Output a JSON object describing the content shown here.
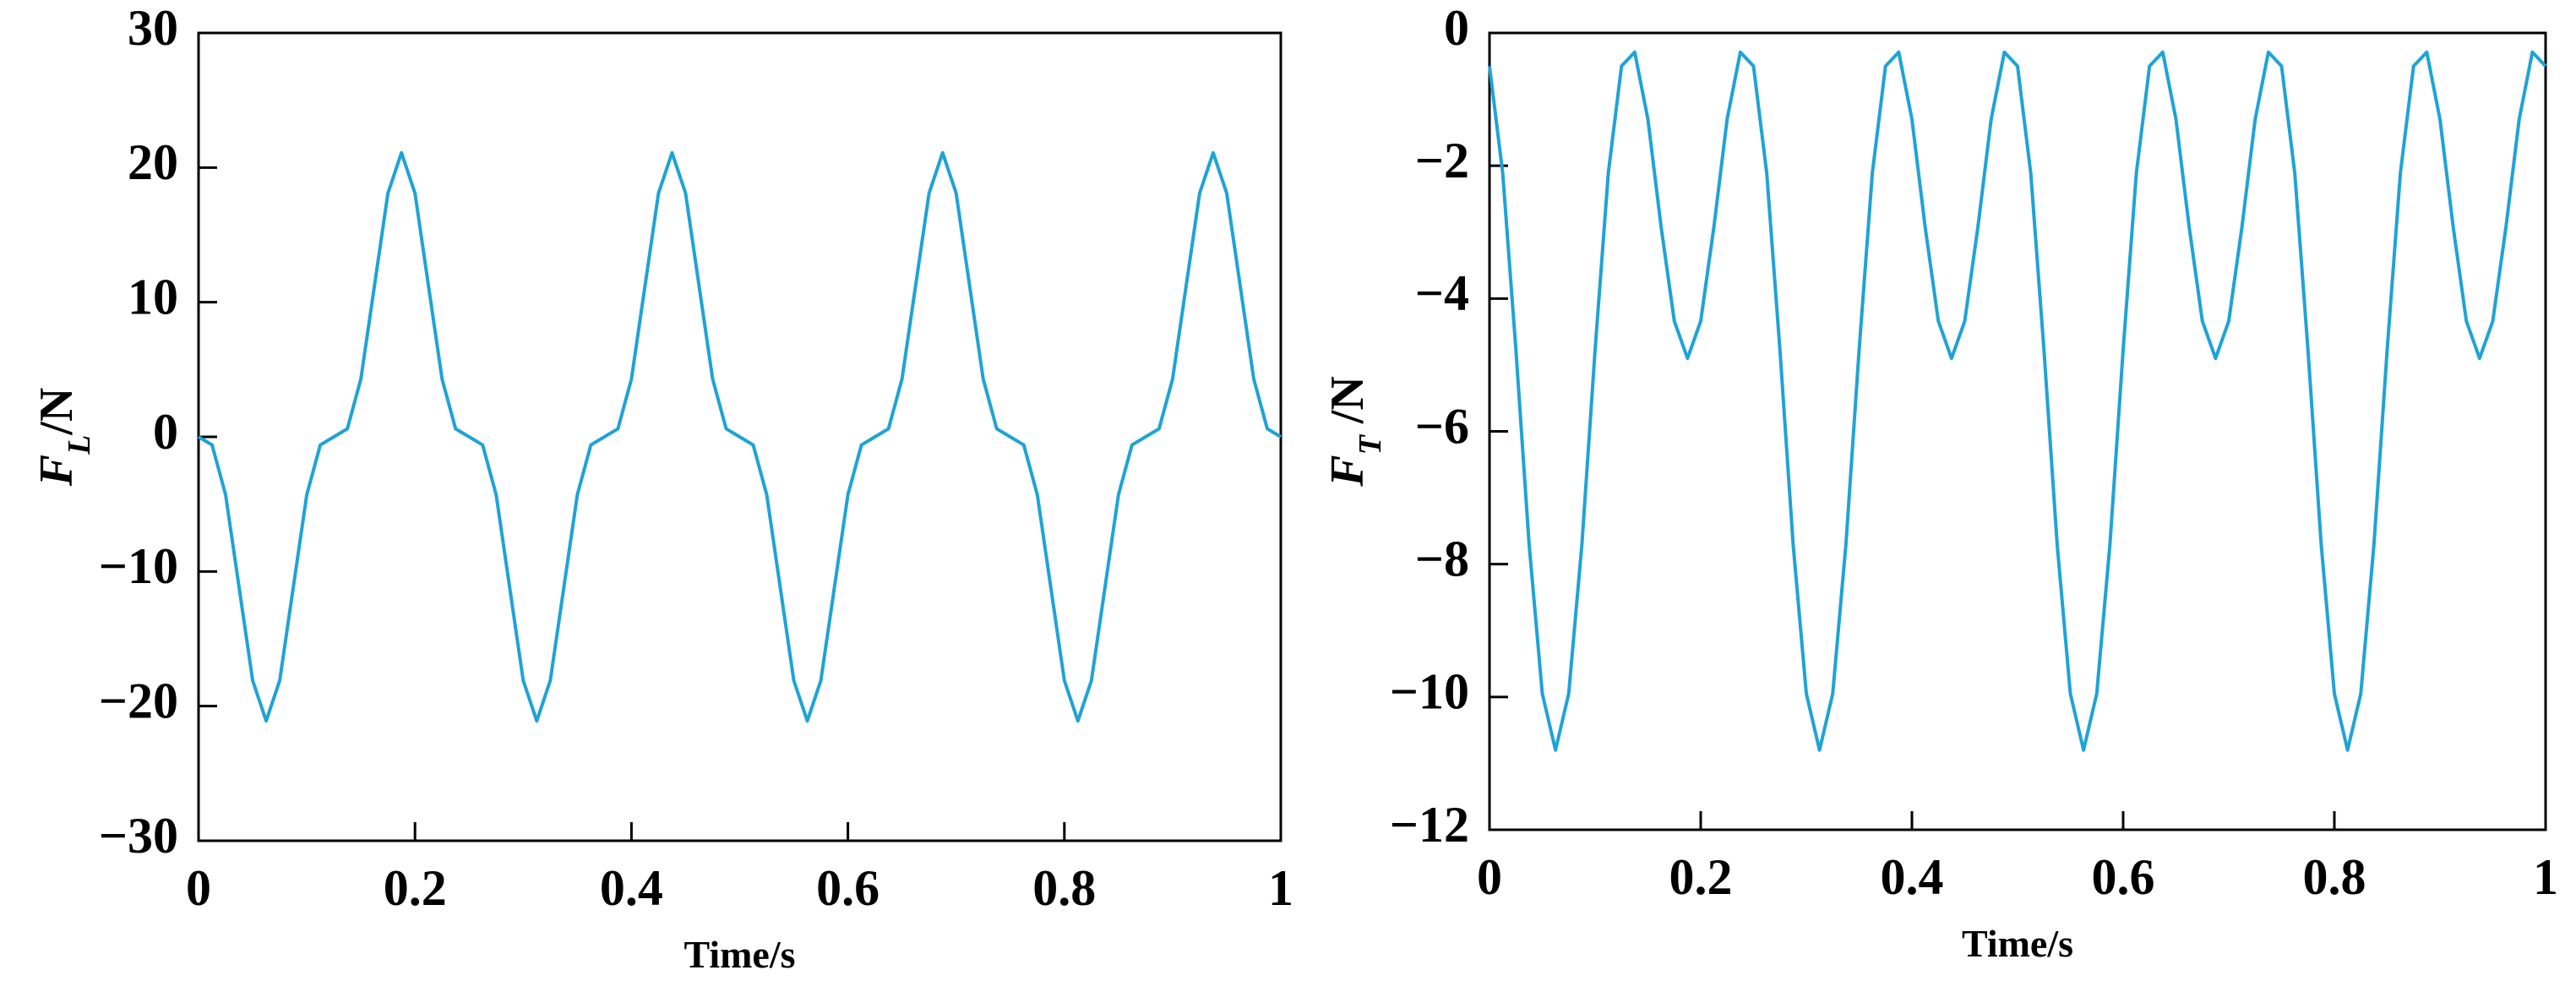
{
  "chart_data": [
    {
      "type": "line",
      "xlabel": "Time/s",
      "ylabel": {
        "symbol": "F",
        "subscript": "L",
        "unit": "/N"
      },
      "xlim": [
        0,
        1
      ],
      "ylim": [
        -30,
        30
      ],
      "xticks": [
        0,
        0.2,
        0.4,
        0.6,
        0.8,
        1
      ],
      "yticks": [
        {
          "value": -30,
          "label": "−30"
        },
        {
          "value": -20,
          "label": "−20"
        },
        {
          "value": -10,
          "label": "−10"
        },
        0,
        10,
        20,
        30
      ],
      "x": [
        0,
        0.0125,
        0.025,
        0.0375,
        0.05,
        0.0625,
        0.075,
        0.0875,
        0.1,
        0.1125,
        0.125,
        0.1375,
        0.15,
        0.1625,
        0.175,
        0.1875,
        0.2,
        0.2125,
        0.225,
        0.2375,
        0.25,
        0.2625,
        0.275,
        0.2875,
        0.3,
        0.3125,
        0.325,
        0.3375,
        0.35,
        0.3625,
        0.375,
        0.3875,
        0.4,
        0.4125,
        0.425,
        0.4375,
        0.45,
        0.4625,
        0.475,
        0.4875,
        0.5,
        0.5125,
        0.525,
        0.5375,
        0.55,
        0.5625,
        0.575,
        0.5875,
        0.6,
        0.6125,
        0.625,
        0.6375,
        0.65,
        0.6625,
        0.675,
        0.6875,
        0.7,
        0.7125,
        0.725,
        0.7375,
        0.75,
        0.7625,
        0.775,
        0.7875,
        0.8,
        0.8125,
        0.825,
        0.8375,
        0.85,
        0.8625,
        0.875,
        0.8875,
        0.9,
        0.9125,
        0.925,
        0.9375,
        0.95,
        0.9625,
        0.975,
        0.9875,
        1
      ],
      "series": [
        {
          "color": "#1fa3d6",
          "values": [
            0,
            -0.6,
            -4.3,
            -11.2,
            -18.1,
            -21.1,
            -18.1,
            -11.2,
            -4.3,
            -0.6,
            0,
            0.6,
            4.3,
            11.2,
            18.1,
            21.1,
            18.1,
            11.2,
            4.3,
            0.6,
            0,
            -0.6,
            -4.3,
            -11.2,
            -18.1,
            -21.1,
            -18.1,
            -11.2,
            -4.3,
            -0.6,
            0,
            0.6,
            4.3,
            11.2,
            18.1,
            21.1,
            18.1,
            11.2,
            4.3,
            0.6,
            0,
            -0.6,
            -4.3,
            -11.2,
            -18.1,
            -21.1,
            -18.1,
            -11.2,
            -4.3,
            -0.6,
            0,
            0.6,
            4.3,
            11.2,
            18.1,
            21.1,
            18.1,
            11.2,
            4.3,
            0.6,
            0,
            -0.6,
            -4.3,
            -11.2,
            -18.1,
            -21.1,
            -18.1,
            -11.2,
            -4.3,
            -0.6,
            0,
            0.6,
            4.3,
            11.2,
            18.1,
            21.1,
            18.1,
            11.2,
            4.3,
            0.6,
            0
          ]
        }
      ]
    },
    {
      "type": "line",
      "xlabel": "Time/s",
      "ylabel": {
        "symbol": "F",
        "subscript": "T",
        "unit": " /N"
      },
      "xlim": [
        0,
        1
      ],
      "ylim": [
        -12,
        0
      ],
      "xticks": [
        0,
        0.2,
        0.4,
        0.6,
        0.8,
        1
      ],
      "yticks": [
        {
          "value": -12,
          "label": "−12"
        },
        {
          "value": -10,
          "label": "−10"
        },
        {
          "value": -8,
          "label": "−8"
        },
        {
          "value": -6,
          "label": "−6"
        },
        {
          "value": -4,
          "label": "−4"
        },
        {
          "value": -2,
          "label": "−2"
        },
        0
      ],
      "x": [
        0,
        0.0125,
        0.025,
        0.0375,
        0.05,
        0.0625,
        0.075,
        0.0875,
        0.1,
        0.1125,
        0.125,
        0.1375,
        0.15,
        0.1625,
        0.175,
        0.1875,
        0.2,
        0.2125,
        0.225,
        0.2375,
        0.25,
        0.2625,
        0.275,
        0.2875,
        0.3,
        0.3125,
        0.325,
        0.3375,
        0.35,
        0.3625,
        0.375,
        0.3875,
        0.4,
        0.4125,
        0.425,
        0.4375,
        0.45,
        0.4625,
        0.475,
        0.4875,
        0.5,
        0.5125,
        0.525,
        0.5375,
        0.55,
        0.5625,
        0.575,
        0.5875,
        0.6,
        0.6125,
        0.625,
        0.6375,
        0.65,
        0.6625,
        0.675,
        0.6875,
        0.7,
        0.7125,
        0.725,
        0.7375,
        0.75,
        0.7625,
        0.775,
        0.7875,
        0.8,
        0.8125,
        0.825,
        0.8375,
        0.85,
        0.8625,
        0.875,
        0.8875,
        0.9,
        0.9125,
        0.925,
        0.9375,
        0.95,
        0.9625,
        0.975,
        0.9875,
        1
      ],
      "series": [
        {
          "color": "#1fa3d6",
          "values": [
            -0.5,
            -2.11,
            -4.77,
            -7.7,
            -9.95,
            -10.8,
            -9.95,
            -7.7,
            -4.77,
            -2.11,
            -0.5,
            -0.29,
            -1.3,
            -2.92,
            -4.34,
            -4.9,
            -4.34,
            -2.92,
            -1.3,
            -0.29,
            -0.5,
            -2.11,
            -4.77,
            -7.7,
            -9.95,
            -10.8,
            -9.95,
            -7.7,
            -4.77,
            -2.11,
            -0.5,
            -0.29,
            -1.3,
            -2.92,
            -4.34,
            -4.9,
            -4.34,
            -2.92,
            -1.3,
            -0.29,
            -0.5,
            -2.11,
            -4.77,
            -7.7,
            -9.95,
            -10.8,
            -9.95,
            -7.7,
            -4.77,
            -2.11,
            -0.5,
            -0.29,
            -1.3,
            -2.92,
            -4.34,
            -4.9,
            -4.34,
            -2.92,
            -1.3,
            -0.29,
            -0.5,
            -2.11,
            -4.77,
            -7.7,
            -9.95,
            -10.8,
            -9.95,
            -7.7,
            -4.77,
            -2.11,
            -0.5,
            -0.29,
            -1.3,
            -2.92,
            -4.34,
            -4.9,
            -4.34,
            -2.92,
            -1.3,
            -0.29,
            -0.5
          ]
        }
      ]
    }
  ]
}
